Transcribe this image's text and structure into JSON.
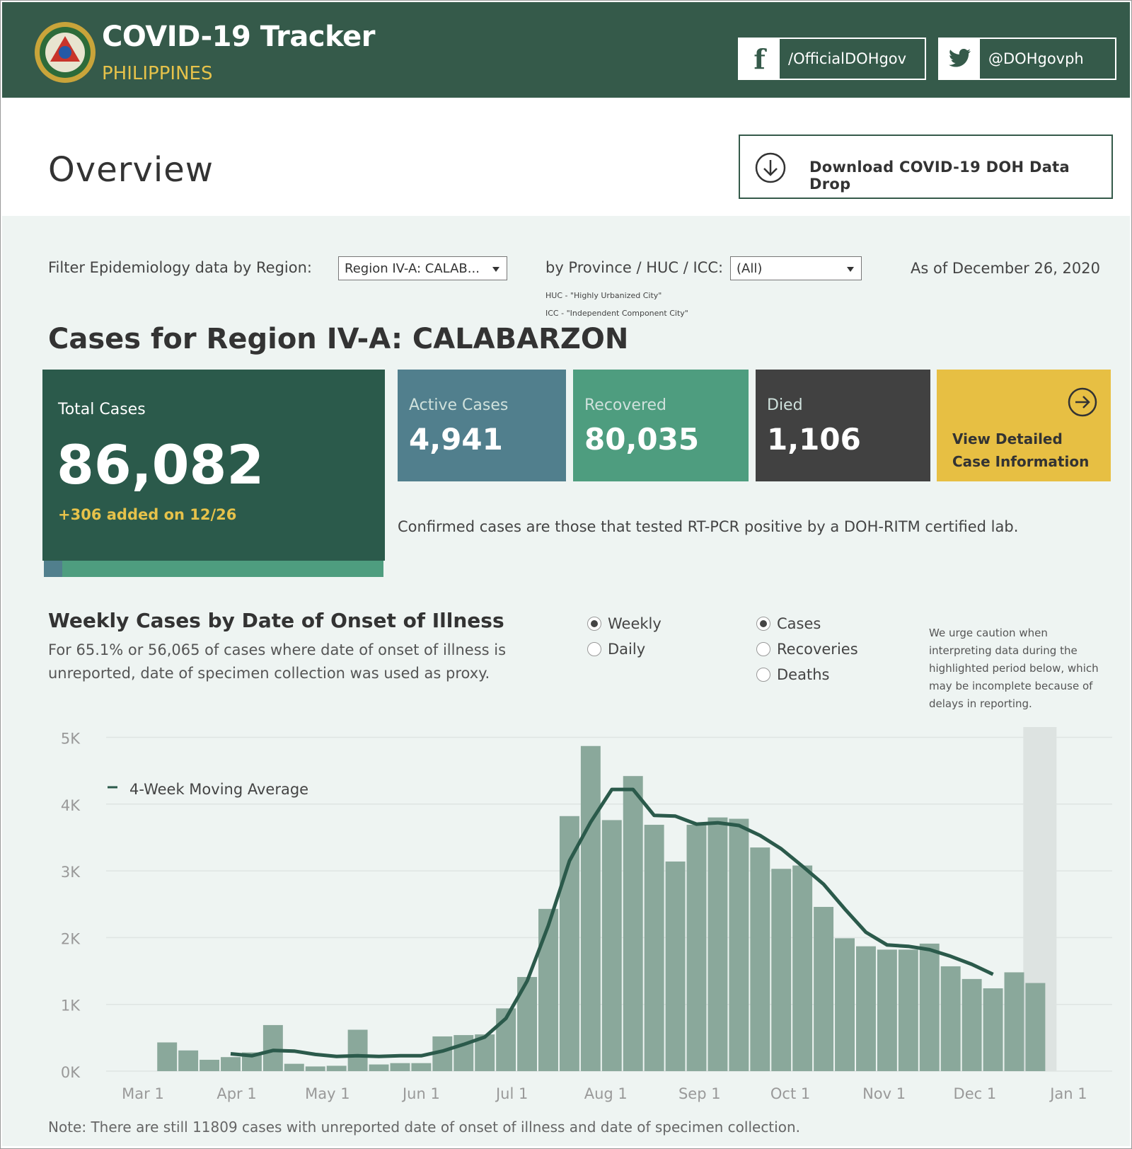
{
  "header": {
    "title": "COVID-19 Tracker",
    "subtitle": "PHILIPPINES",
    "facebook_label": "/OfficialDOHgov",
    "twitter_label": "@DOHgovph"
  },
  "page_title": "Overview",
  "download_button_label": "Download COVID-19 DOH Data Drop",
  "filters": {
    "region_label": "Filter Epidemiology data by Region:",
    "region_value": "Region IV-A: CALAB...",
    "province_label": "by Province / HUC / ICC:",
    "province_value": "(All)",
    "huc_note": "HUC - \"Highly Urbanized City\"",
    "icc_note": "ICC - \"Independent Component City\"",
    "as_of": "As of December 26, 2020"
  },
  "region_title": "Cases for Region IV-A: CALABARZON",
  "total": {
    "label": "Total Cases",
    "value": "86,082",
    "added": "+306 added on 12/26"
  },
  "stats": [
    {
      "label": "Active Cases",
      "value": "4,941"
    },
    {
      "label": "Recovered",
      "value": "80,035"
    },
    {
      "label": "Died",
      "value": "1,106"
    }
  ],
  "view_detail": {
    "line1": "View Detailed",
    "line2": "Case Information"
  },
  "confirmed_note": "Confirmed cases are those that tested RT-PCR positive by a DOH-RITM certified lab.",
  "weekly": {
    "title": "Weekly Cases by Date of Onset of Illness",
    "subtitle": "For 65.1% or 56,065 of cases where date of onset of illness is unreported, date of specimen collection was used as proxy.",
    "period_options": [
      "Weekly",
      "Daily"
    ],
    "period_selected": "Weekly",
    "measure_options": [
      "Cases",
      "Recoveries",
      "Deaths"
    ],
    "measure_selected": "Cases",
    "caution": "We urge caution when interpreting data during the highlighted period below, which may be incomplete because of delays in reporting."
  },
  "colors": {
    "header_bg": "#355a4a",
    "accent_yellow": "#e7bf43",
    "active": "#517f8d",
    "recovered": "#4e9d7f",
    "died": "#414141",
    "bar": "#8aa89b",
    "line": "#2b5a4b"
  },
  "chart_data": {
    "type": "bar",
    "title": "Weekly Cases by Date of Onset of Illness",
    "y_ticks": [
      "0K",
      "1K",
      "2K",
      "3K",
      "4K",
      "5K"
    ],
    "ylim": [
      0,
      5000
    ],
    "x_ticks": [
      "Mar 1",
      "Apr 1",
      "May 1",
      "Jun 1",
      "Jul 1",
      "Aug 1",
      "Sep 1",
      "Oct 1",
      "Nov 1",
      "Dec 1",
      "Jan 1"
    ],
    "x_tick_days": [
      0,
      31,
      61,
      92,
      122,
      153,
      184,
      214,
      245,
      275,
      306
    ],
    "bar_days": [
      8,
      15,
      22,
      29,
      36,
      43,
      50,
      57,
      64,
      71,
      78,
      85,
      92,
      99,
      106,
      113,
      120,
      127,
      134,
      141,
      148,
      155,
      162,
      169,
      176,
      183,
      190,
      197,
      204,
      211,
      218,
      225,
      232,
      239,
      246,
      253,
      260,
      267,
      274,
      281,
      288,
      295
    ],
    "values": [
      430,
      310,
      170,
      210,
      280,
      690,
      110,
      70,
      80,
      620,
      100,
      120,
      120,
      520,
      540,
      550,
      940,
      1410,
      2430,
      3820,
      4870,
      3760,
      4420,
      3690,
      3140,
      3690,
      3800,
      3780,
      3350,
      3030,
      3080,
      2460,
      1990,
      1870,
      1820,
      1820,
      1910,
      1570,
      1380,
      1240,
      1480,
      1320
    ],
    "series": [
      {
        "name": "4-Week Moving Average",
        "values": [
          null,
          null,
          null,
          260,
          230,
          310,
          300,
          250,
          220,
          230,
          220,
          230,
          230,
          300,
          400,
          510,
          790,
          1350,
          2180,
          3150,
          3730,
          4220,
          4220,
          3830,
          3820,
          3700,
          3720,
          3680,
          3530,
          3330,
          3070,
          2800,
          2430,
          2080,
          1890,
          1870,
          1820,
          1720,
          1600,
          1450,
          null,
          null
        ]
      }
    ],
    "highlight_range_days": [
      291,
      302
    ],
    "legend": "4-Week Moving Average"
  },
  "footer_note": "Note: There are still 11809 cases with unreported date of onset of illness and date of specimen collection."
}
